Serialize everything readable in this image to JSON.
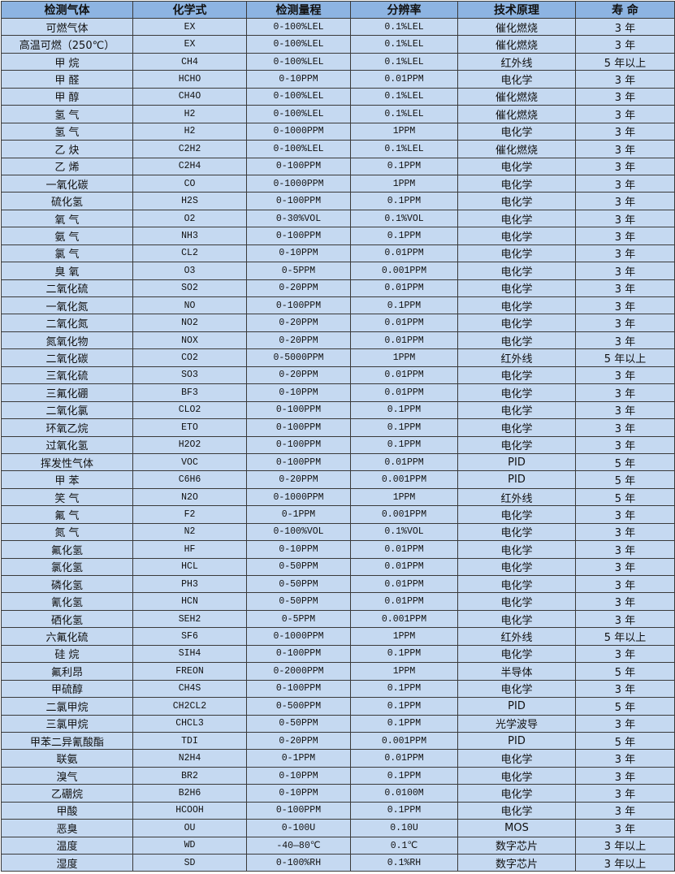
{
  "headers": [
    "检测气体",
    "化学式",
    "检测量程",
    "分辨率",
    "技术原理",
    "寿 命"
  ],
  "rows": [
    [
      "可燃气体",
      "EX",
      "0-100%LEL",
      "0.1%LEL",
      "催化燃烧",
      "3 年"
    ],
    [
      "高温可燃（250℃）",
      "EX",
      "0-100%LEL",
      "0.1%LEL",
      "催化燃烧",
      "3 年"
    ],
    [
      "甲 烷",
      "CH4",
      "0-100%LEL",
      "0.1%LEL",
      "红外线",
      "5 年以上"
    ],
    [
      "甲 醛",
      "HCHO",
      "0-10PPM",
      "0.01PPM",
      "电化学",
      "3 年"
    ],
    [
      "甲 醇",
      "CH4O",
      "0-100%LEL",
      "0.1%LEL",
      "催化燃烧",
      "3 年"
    ],
    [
      "氢 气",
      "H2",
      "0-100%LEL",
      "0.1%LEL",
      "催化燃烧",
      "3 年"
    ],
    [
      "氢 气",
      "H2",
      "0-1000PPM",
      "1PPM",
      "电化学",
      "3 年"
    ],
    [
      "乙 炔",
      "C2H2",
      "0-100%LEL",
      "0.1%LEL",
      "催化燃烧",
      "3 年"
    ],
    [
      "乙 烯",
      "C2H4",
      "0-100PPM",
      "0.1PPM",
      "电化学",
      "3 年"
    ],
    [
      "一氧化碳",
      "CO",
      "0-1000PPM",
      "1PPM",
      "电化学",
      "3 年"
    ],
    [
      "硫化氢",
      "H2S",
      "0-100PPM",
      "0.1PPM",
      "电化学",
      "3 年"
    ],
    [
      "氧 气",
      "O2",
      "0-30%VOL",
      "0.1%VOL",
      "电化学",
      "3 年"
    ],
    [
      "氨 气",
      "NH3",
      "0-100PPM",
      "0.1PPM",
      "电化学",
      "3 年"
    ],
    [
      "氯 气",
      "CL2",
      "0-10PPM",
      "0.01PPM",
      "电化学",
      "3 年"
    ],
    [
      "臭 氧",
      "O3",
      "0-5PPM",
      "0.001PPM",
      "电化学",
      "3 年"
    ],
    [
      "二氧化硫",
      "SO2",
      "0-20PPM",
      "0.01PPM",
      "电化学",
      "3 年"
    ],
    [
      "一氧化氮",
      "NO",
      "0-100PPM",
      "0.1PPM",
      "电化学",
      "3 年"
    ],
    [
      "二氧化氮",
      "NO2",
      "0-20PPM",
      "0.01PPM",
      "电化学",
      "3 年"
    ],
    [
      "氮氧化物",
      "NOX",
      "0-20PPM",
      "0.01PPM",
      "电化学",
      "3 年"
    ],
    [
      "二氧化碳",
      "CO2",
      "0-5000PPM",
      "1PPM",
      "红外线",
      "5 年以上"
    ],
    [
      "三氧化硫",
      "SO3",
      "0-20PPM",
      "0.01PPM",
      "电化学",
      "3 年"
    ],
    [
      "三氟化硼",
      "BF3",
      "0-10PPM",
      "0.01PPM",
      "电化学",
      "3 年"
    ],
    [
      "二氧化氯",
      "CLO2",
      "0-100PPM",
      "0.1PPM",
      "电化学",
      "3 年"
    ],
    [
      "环氧乙烷",
      "ETO",
      "0-100PPM",
      "0.1PPM",
      "电化学",
      "3 年"
    ],
    [
      "过氧化氢",
      "H2O2",
      "0-100PPM",
      "0.1PPM",
      "电化学",
      "3 年"
    ],
    [
      "挥发性气体",
      "VOC",
      "0-100PPM",
      "0.01PPM",
      "PID",
      "5 年"
    ],
    [
      "甲 苯",
      "C6H6",
      "0-20PPM",
      "0.001PPM",
      "PID",
      "5 年"
    ],
    [
      "笑 气",
      "N2O",
      "0-1000PPM",
      "1PPM",
      "红外线",
      "5 年"
    ],
    [
      "氟 气",
      "F2",
      "0-1PPM",
      "0.001PPM",
      "电化学",
      "3 年"
    ],
    [
      "氮 气",
      "N2",
      "0-100%VOL",
      "0.1%VOL",
      "电化学",
      "3 年"
    ],
    [
      "氟化氢",
      "HF",
      "0-10PPM",
      "0.01PPM",
      "电化学",
      "3 年"
    ],
    [
      "氯化氢",
      "HCL",
      "0-50PPM",
      "0.01PPM",
      "电化学",
      "3 年"
    ],
    [
      "磷化氢",
      "PH3",
      "0-50PPM",
      "0.01PPM",
      "电化学",
      "3 年"
    ],
    [
      "氰化氢",
      "HCN",
      "0-50PPM",
      "0.01PPM",
      "电化学",
      "3 年"
    ],
    [
      "硒化氢",
      "SEH2",
      "0-5PPM",
      "0.001PPM",
      "电化学",
      "3 年"
    ],
    [
      "六氟化硫",
      "SF6",
      "0-1000PPM",
      "1PPM",
      "红外线",
      "5 年以上"
    ],
    [
      "硅 烷",
      "SIH4",
      "0-100PPM",
      "0.1PPM",
      "电化学",
      "3 年"
    ],
    [
      "氟利昂",
      "FREON",
      "0-2000PPM",
      "1PPM",
      "半导体",
      "5 年"
    ],
    [
      "甲硫醇",
      "CH4S",
      "0-100PPM",
      "0.1PPM",
      "电化学",
      "3 年"
    ],
    [
      "二氯甲烷",
      "CH2CL2",
      "0-500PPM",
      "0.1PPM",
      "PID",
      "5 年"
    ],
    [
      "三氯甲烷",
      "CHCL3",
      "0-50PPM",
      "0.1PPM",
      "光学波导",
      "3 年"
    ],
    [
      "甲苯二异氰酸酯",
      "TDI",
      "0-20PPM",
      "0.001PPM",
      "PID",
      "5 年"
    ],
    [
      "联氨",
      "N2H4",
      "0-1PPM",
      "0.01PPM",
      "电化学",
      "3 年"
    ],
    [
      "溴气",
      "BR2",
      "0-10PPM",
      "0.1PPM",
      "电化学",
      "3 年"
    ],
    [
      "乙硼烷",
      "B2H6",
      "0-10PPM",
      "0.0100M",
      "电化学",
      "3 年"
    ],
    [
      "甲酸",
      "HCOOH",
      "0-100PPM",
      "0.1PPM",
      "电化学",
      "3 年"
    ],
    [
      "恶臭",
      "OU",
      "0-100U",
      "0.10U",
      "MOS",
      "3 年"
    ],
    [
      "温度",
      "WD",
      "-40—80℃",
      "0.1℃",
      "数字芯片",
      "3 年以上"
    ],
    [
      "湿度",
      "SD",
      "0-100%RH",
      "0.1%RH",
      "数字芯片",
      "3 年以上"
    ]
  ]
}
